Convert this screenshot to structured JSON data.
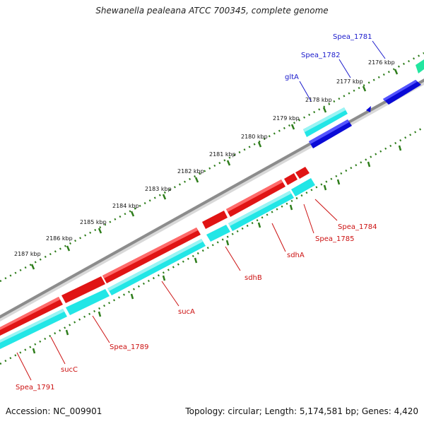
{
  "title": "Shewanella pealeana ATCC 700345, complete genome",
  "accession": "Accession: NC_009901",
  "summary": "Topology: circular; Length: 5,174,581 bp; Genes: 4,420",
  "colors": {
    "backbone": "#8c8c8c",
    "ruler": "#2e7d1b",
    "tick_label": "#111111",
    "forward_label": "#1a1acc",
    "reverse_label": "#cc1111",
    "forward_cds": "#0a0ad6",
    "reverse_cds": "#e01414",
    "forward_gene": "#22e6e6",
    "reverse_gene": "#22e6e6",
    "other": "#22e6a0"
  },
  "ruler_ticks": [
    "2176 kbp",
    "2177 kbp",
    "2178 kbp",
    "2179 kbp",
    "2180 kbp",
    "2181 kbp",
    "2182 kbp",
    "2183 kbp",
    "2184 kbp",
    "2185 kbp",
    "2186 kbp",
    "2187 kbp"
  ],
  "forward_labels": [
    "Spea_1781",
    "Spea_1782",
    "gltA"
  ],
  "reverse_labels": [
    "Spea_1784",
    "Spea_1785",
    "sdhA",
    "sdhB",
    "sucA",
    "Spea_1789",
    "sucC",
    "Spea_1791"
  ]
}
